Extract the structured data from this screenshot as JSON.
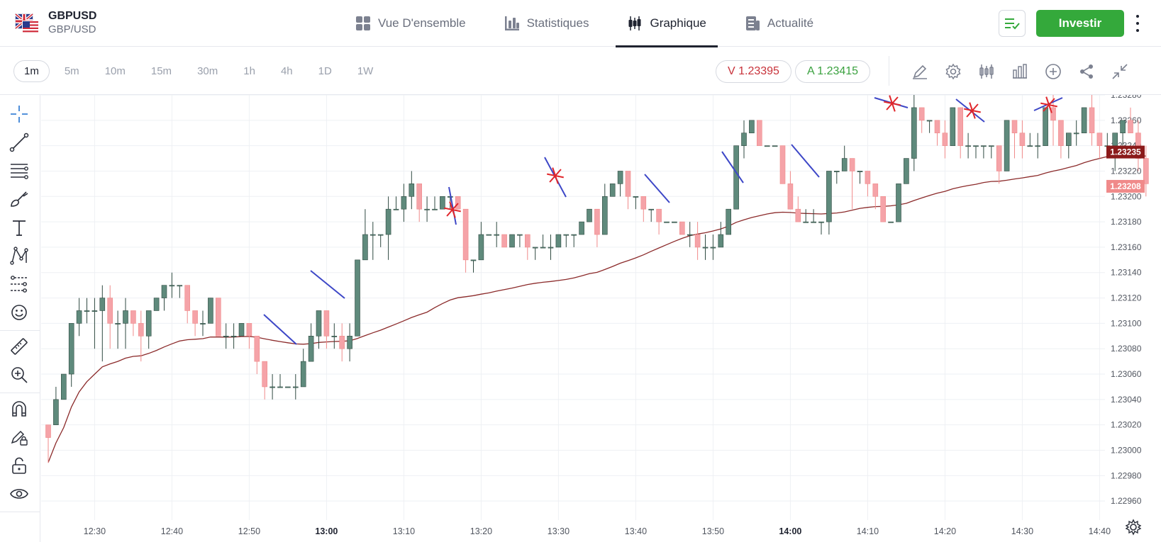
{
  "header": {
    "symbol": "GBPUSD",
    "pair_name": "GBP/USD",
    "tabs": [
      {
        "label": "Vue D'ensemble",
        "icon": "grid-icon",
        "active": false
      },
      {
        "label": "Statistiques",
        "icon": "bar-stats-icon",
        "active": false
      },
      {
        "label": "Graphique",
        "icon": "candles-icon",
        "active": true
      },
      {
        "label": "Actualité",
        "icon": "news-icon",
        "active": false
      }
    ],
    "invest_label": "Investir",
    "accent_color": "#34a93b"
  },
  "toolbar": {
    "timeframes": [
      "1m",
      "5m",
      "10m",
      "15m",
      "30m",
      "1h",
      "4h",
      "1D",
      "1W"
    ],
    "active_timeframe": "1m",
    "sell_price": "V 1.23395",
    "buy_price": "A 1.23415",
    "icons": [
      "pencil-icon",
      "gear-icon",
      "candle-type-icon",
      "indicators-icon",
      "add-icon",
      "share-icon",
      "collapse-icon"
    ]
  },
  "left_tools": [
    "crosshair-icon",
    "trend-line-icon",
    "fib-icon",
    "brush-icon",
    "text-icon",
    "pattern-icon",
    "forecast-icon",
    "emoji-icon",
    "ruler-icon",
    "zoom-in-icon",
    "magnet-icon",
    "lock-drawing-icon",
    "unlock-icon",
    "eye-icon"
  ],
  "chart_data": {
    "type": "candlestick",
    "y_range": [
      1.22945,
      1.2328
    ],
    "y_ticks": [
      "1.23280",
      "1.23260",
      "1.23240",
      "1.23220",
      "1.23200",
      "1.23180",
      "1.23160",
      "1.23140",
      "1.23120",
      "1.23100",
      "1.23080",
      "1.23060",
      "1.23040",
      "1.23020",
      "1.23000",
      "1.22980",
      "1.22960"
    ],
    "x_ticks": [
      {
        "label": "12:30",
        "bold": false
      },
      {
        "label": "12:40",
        "bold": false
      },
      {
        "label": "12:50",
        "bold": false
      },
      {
        "label": "13:00",
        "bold": true
      },
      {
        "label": "13:10",
        "bold": false
      },
      {
        "label": "13:20",
        "bold": false
      },
      {
        "label": "13:30",
        "bold": false
      },
      {
        "label": "13:40",
        "bold": false
      },
      {
        "label": "13:50",
        "bold": false
      },
      {
        "label": "14:00",
        "bold": true
      },
      {
        "label": "14:10",
        "bold": false
      },
      {
        "label": "14:20",
        "bold": false
      },
      {
        "label": "14:30",
        "bold": false
      },
      {
        "label": "14:40",
        "bold": false
      }
    ],
    "price_tags": [
      {
        "value": "1.23235",
        "color": "#8b1a1a"
      },
      {
        "value": "1.23208",
        "color": "#f08a8a"
      }
    ],
    "up_color": "#5f8a7c",
    "down_color": "#f5a3a8",
    "ma_color": "#8b2a2a",
    "candles": [
      [
        1.2302,
        1.2301,
        1.2302,
        1.2299
      ],
      [
        1.2302,
        1.2304,
        1.2305,
        1.2302
      ],
      [
        1.2304,
        1.2306,
        1.2306,
        1.2304
      ],
      [
        1.2306,
        1.231,
        1.231,
        1.2305
      ],
      [
        1.231,
        1.2311,
        1.2312,
        1.2309
      ],
      [
        1.2311,
        1.2311,
        1.2312,
        1.231
      ],
      [
        1.2311,
        1.2311,
        1.2312,
        1.2308
      ],
      [
        1.2311,
        1.2312,
        1.2313,
        1.2307
      ],
      [
        1.2312,
        1.231,
        1.2313,
        1.2308
      ],
      [
        1.231,
        1.231,
        1.2311,
        1.2308
      ],
      [
        1.231,
        1.2311,
        1.2312,
        1.2308
      ],
      [
        1.2311,
        1.231,
        1.2311,
        1.2309
      ],
      [
        1.231,
        1.2309,
        1.2311,
        1.2307
      ],
      [
        1.2309,
        1.2311,
        1.2311,
        1.2308
      ],
      [
        1.2311,
        1.2312,
        1.2312,
        1.2311
      ],
      [
        1.2312,
        1.2313,
        1.2313,
        1.2311
      ],
      [
        1.2313,
        1.2313,
        1.2314,
        1.2312
      ],
      [
        1.2313,
        1.2313,
        1.2313,
        1.2312
      ],
      [
        1.2313,
        1.2311,
        1.2313,
        1.231
      ],
      [
        1.2311,
        1.231,
        1.2311,
        1.2309
      ],
      [
        1.231,
        1.231,
        1.2311,
        1.2309
      ],
      [
        1.231,
        1.2312,
        1.2312,
        1.231
      ],
      [
        1.2312,
        1.2309,
        1.2312,
        1.2309
      ],
      [
        1.2309,
        1.2309,
        1.231,
        1.2308
      ],
      [
        1.2309,
        1.2309,
        1.231,
        1.2308
      ],
      [
        1.2309,
        1.231,
        1.231,
        1.2309
      ],
      [
        1.231,
        1.2309,
        1.231,
        1.2308
      ],
      [
        1.2309,
        1.2307,
        1.2309,
        1.2306
      ],
      [
        1.2307,
        1.2305,
        1.2307,
        1.2304
      ],
      [
        1.2305,
        1.2305,
        1.2306,
        1.2304
      ],
      [
        1.2305,
        1.2305,
        1.2306,
        1.2305
      ],
      [
        1.2305,
        1.2305,
        1.2305,
        1.2305
      ],
      [
        1.2305,
        1.2305,
        1.2306,
        1.2304
      ],
      [
        1.2305,
        1.2307,
        1.2308,
        1.2305
      ],
      [
        1.2307,
        1.2309,
        1.231,
        1.2307
      ],
      [
        1.2309,
        1.2311,
        1.2311,
        1.2308
      ],
      [
        1.2311,
        1.2309,
        1.2311,
        1.2308
      ],
      [
        1.2309,
        1.2309,
        1.231,
        1.2308
      ],
      [
        1.2309,
        1.2308,
        1.231,
        1.2307
      ],
      [
        1.2308,
        1.2309,
        1.231,
        1.2307
      ],
      [
        1.2309,
        1.2315,
        1.2315,
        1.2309
      ],
      [
        1.2315,
        1.2317,
        1.2319,
        1.2315
      ],
      [
        1.2317,
        1.2317,
        1.2318,
        1.2315
      ],
      [
        1.2317,
        1.2317,
        1.2317,
        1.2316
      ],
      [
        1.2317,
        1.2319,
        1.232,
        1.2315
      ],
      [
        1.2319,
        1.2319,
        1.232,
        1.2319
      ],
      [
        1.2319,
        1.232,
        1.2321,
        1.2318
      ],
      [
        1.232,
        1.2321,
        1.2322,
        1.2319
      ],
      [
        1.2321,
        1.2319,
        1.2321,
        1.2318
      ],
      [
        1.2319,
        1.2319,
        1.232,
        1.2318
      ],
      [
        1.2319,
        1.2319,
        1.232,
        1.2319
      ],
      [
        1.2319,
        1.232,
        1.232,
        1.2319
      ],
      [
        1.232,
        1.232,
        1.232,
        1.2319
      ],
      [
        1.232,
        1.2319,
        1.232,
        1.2319
      ],
      [
        1.2319,
        1.2315,
        1.2319,
        1.2314
      ],
      [
        1.2315,
        1.2315,
        1.2315,
        1.2314
      ],
      [
        1.2315,
        1.2317,
        1.2318,
        1.2315
      ],
      [
        1.2317,
        1.2317,
        1.2317,
        1.2317
      ],
      [
        1.2317,
        1.2317,
        1.2318,
        1.2316
      ],
      [
        1.2317,
        1.2316,
        1.2317,
        1.2316
      ],
      [
        1.2316,
        1.2317,
        1.2317,
        1.2316
      ],
      [
        1.2317,
        1.2317,
        1.2317,
        1.2316
      ],
      [
        1.2317,
        1.2316,
        1.2317,
        1.2315
      ],
      [
        1.2316,
        1.2316,
        1.2316,
        1.2315
      ],
      [
        1.2316,
        1.2316,
        1.2317,
        1.2316
      ],
      [
        1.2316,
        1.2316,
        1.2317,
        1.2315
      ],
      [
        1.2316,
        1.2317,
        1.2317,
        1.2316
      ],
      [
        1.2317,
        1.2317,
        1.2317,
        1.2316
      ],
      [
        1.2317,
        1.2317,
        1.2317,
        1.2316
      ],
      [
        1.2317,
        1.2318,
        1.2318,
        1.2317
      ],
      [
        1.2318,
        1.2319,
        1.2319,
        1.2318
      ],
      [
        1.2319,
        1.2317,
        1.2319,
        1.2316
      ],
      [
        1.2317,
        1.232,
        1.2321,
        1.2317
      ],
      [
        1.232,
        1.2321,
        1.2321,
        1.232
      ],
      [
        1.2321,
        1.2322,
        1.2322,
        1.232
      ],
      [
        1.2322,
        1.232,
        1.2322,
        1.2319
      ],
      [
        1.232,
        1.232,
        1.232,
        1.2319
      ],
      [
        1.232,
        1.2319,
        1.232,
        1.2318
      ],
      [
        1.2319,
        1.2319,
        1.2319,
        1.2318
      ],
      [
        1.2319,
        1.2318,
        1.2319,
        1.2317
      ],
      [
        1.2318,
        1.2318,
        1.2318,
        1.2318
      ],
      [
        1.2318,
        1.2318,
        1.2318,
        1.2318
      ],
      [
        1.2318,
        1.2317,
        1.2318,
        1.2317
      ],
      [
        1.2317,
        1.2317,
        1.2318,
        1.2316
      ],
      [
        1.2317,
        1.2316,
        1.2318,
        1.2315
      ],
      [
        1.2316,
        1.2316,
        1.2317,
        1.2315
      ],
      [
        1.2316,
        1.2316,
        1.2317,
        1.2315
      ],
      [
        1.2316,
        1.2317,
        1.2318,
        1.2316
      ],
      [
        1.2317,
        1.2319,
        1.2319,
        1.2317
      ],
      [
        1.2319,
        1.2324,
        1.2324,
        1.2319
      ],
      [
        1.2324,
        1.2325,
        1.2326,
        1.2323
      ],
      [
        1.2325,
        1.2326,
        1.2326,
        1.2325
      ],
      [
        1.2326,
        1.2324,
        1.2326,
        1.2324
      ],
      [
        1.2324,
        1.2324,
        1.2324,
        1.2324
      ],
      [
        1.2324,
        1.2324,
        1.2324,
        1.2324
      ],
      [
        1.2324,
        1.2321,
        1.2324,
        1.2321
      ],
      [
        1.2321,
        1.2319,
        1.2322,
        1.2319
      ],
      [
        1.2319,
        1.2318,
        1.232,
        1.2318
      ],
      [
        1.2318,
        1.2318,
        1.2319,
        1.2318
      ],
      [
        1.2318,
        1.2318,
        1.2319,
        1.2318
      ],
      [
        1.2318,
        1.2318,
        1.2318,
        1.2317
      ],
      [
        1.2318,
        1.2322,
        1.2322,
        1.2317
      ],
      [
        1.2322,
        1.2322,
        1.2322,
        1.2321
      ],
      [
        1.2322,
        1.2323,
        1.2324,
        1.2322
      ],
      [
        1.2323,
        1.2322,
        1.2323,
        1.2319
      ],
      [
        1.2322,
        1.2322,
        1.2322,
        1.2321
      ],
      [
        1.2322,
        1.2321,
        1.2322,
        1.232
      ],
      [
        1.2321,
        1.232,
        1.2321,
        1.2319
      ],
      [
        1.232,
        1.2318,
        1.232,
        1.2318
      ],
      [
        1.2318,
        1.2318,
        1.2318,
        1.2318
      ],
      [
        1.2318,
        1.2321,
        1.2321,
        1.2318
      ],
      [
        1.2321,
        1.2323,
        1.2323,
        1.2321
      ],
      [
        1.2323,
        1.2327,
        1.2328,
        1.2322
      ],
      [
        1.2327,
        1.2326,
        1.2327,
        1.2325
      ],
      [
        1.2326,
        1.2326,
        1.2326,
        1.2325
      ],
      [
        1.2326,
        1.2325,
        1.2326,
        1.2324
      ],
      [
        1.2325,
        1.2324,
        1.2326,
        1.2323
      ],
      [
        1.2324,
        1.2327,
        1.2327,
        1.2324
      ],
      [
        1.2327,
        1.2324,
        1.2327,
        1.2323
      ],
      [
        1.2324,
        1.2324,
        1.2325,
        1.2323
      ],
      [
        1.2324,
        1.2324,
        1.2324,
        1.2323
      ],
      [
        1.2324,
        1.2324,
        1.2324,
        1.2323
      ],
      [
        1.2324,
        1.2324,
        1.2324,
        1.2323
      ],
      [
        1.2324,
        1.2322,
        1.2324,
        1.2321
      ],
      [
        1.2322,
        1.2326,
        1.2326,
        1.2322
      ],
      [
        1.2326,
        1.2325,
        1.2326,
        1.2323
      ],
      [
        1.2325,
        1.2324,
        1.2326,
        1.2323
      ],
      [
        1.2324,
        1.2324,
        1.2325,
        1.2324
      ],
      [
        1.2324,
        1.2324,
        1.2325,
        1.2323
      ],
      [
        1.2324,
        1.2327,
        1.2327,
        1.2324
      ],
      [
        1.2327,
        1.2326,
        1.2328,
        1.2324
      ],
      [
        1.2326,
        1.2324,
        1.2326,
        1.2323
      ],
      [
        1.2324,
        1.2325,
        1.2325,
        1.2323
      ],
      [
        1.2325,
        1.2325,
        1.2326,
        1.2324
      ],
      [
        1.2325,
        1.2327,
        1.2327,
        1.2325
      ],
      [
        1.2327,
        1.2325,
        1.2328,
        1.2324
      ],
      [
        1.2325,
        1.2324,
        1.2325,
        1.2323
      ],
      [
        1.2324,
        1.2324,
        1.2325,
        1.2323
      ],
      [
        1.2324,
        1.2325,
        1.2325,
        1.2322
      ],
      [
        1.2325,
        1.2326,
        1.2326,
        1.2324
      ],
      [
        1.2326,
        1.2325,
        1.2327,
        1.2325
      ],
      [
        1.2325,
        1.2323,
        1.2326,
        1.2322
      ],
      [
        1.2323,
        1.2321,
        1.2324,
        1.232
      ]
    ]
  }
}
